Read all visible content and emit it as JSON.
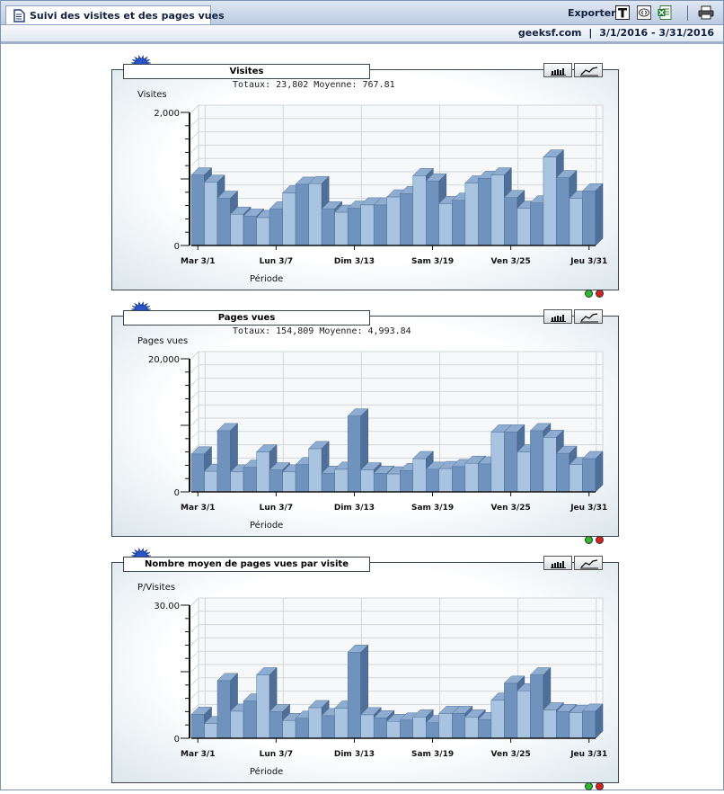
{
  "header": {
    "title": "Suivi des visites et des pages vues",
    "export_label": "Exporter",
    "site": "geeksf.com",
    "separator": "|",
    "date_range": "3/1/2016 - 3/31/2016"
  },
  "charts": [
    {
      "title": "Visites",
      "totals": "Totaux: 23,802  Moyenne: 767.81",
      "ylabel": "Visites",
      "xlabel": "Période"
    },
    {
      "title": "Pages vues",
      "totals": "Totaux: 154,809  Moyenne: 4,993.84",
      "ylabel": "Pages vues",
      "xlabel": "Période"
    },
    {
      "title": "Nombre moyen de pages vues par visite",
      "totals": "",
      "ylabel": "P/Visites",
      "xlabel": "Période"
    }
  ],
  "chart_data": [
    {
      "type": "bar",
      "title": "Visites",
      "ylabel": "Visites",
      "xlabel": "Période",
      "ylim": [
        0,
        2000
      ],
      "yticks": [
        "0",
        "2,000"
      ],
      "xtick_labels": [
        "Mar 3/1",
        "Lun 3/7",
        "Dim 3/13",
        "Sam 3/19",
        "Ven 3/25",
        "Jeu 3/31"
      ],
      "xtick_index": [
        0,
        6,
        12,
        18,
        24,
        30
      ],
      "values": [
        1060,
        950,
        710,
        470,
        440,
        420,
        550,
        790,
        920,
        930,
        550,
        500,
        560,
        610,
        610,
        730,
        780,
        1050,
        970,
        630,
        680,
        940,
        1010,
        1060,
        720,
        560,
        640,
        1330,
        1020,
        710,
        820
      ]
    },
    {
      "type": "bar",
      "title": "Pages vues",
      "ylabel": "Pages vues",
      "xlabel": "Période",
      "ylim": [
        0,
        20000
      ],
      "yticks": [
        "0",
        "20,000"
      ],
      "xtick_labels": [
        "Mar 3/1",
        "Lun 3/7",
        "Dim 3/13",
        "Sam 3/19",
        "Ven 3/25",
        "Jeu 3/31"
      ],
      "xtick_index": [
        0,
        6,
        12,
        18,
        24,
        30
      ],
      "values": [
        5700,
        3100,
        9200,
        3000,
        3700,
        6000,
        3300,
        3000,
        4100,
        6500,
        2800,
        3400,
        11400,
        3300,
        2800,
        2700,
        3200,
        5000,
        3400,
        3500,
        3800,
        4300,
        4200,
        9000,
        9000,
        6000,
        9200,
        8200,
        5800,
        4100,
        5000
      ]
    },
    {
      "type": "bar",
      "title": "Nombre moyen de pages vues par visite",
      "ylabel": "P/Visites",
      "xlabel": "Période",
      "ylim": [
        0,
        30
      ],
      "yticks": [
        "0",
        "30.00"
      ],
      "xtick_labels": [
        "Mar 3/1",
        "Lun 3/7",
        "Dim 3/13",
        "Sam 3/19",
        "Ven 3/25",
        "Jeu 3/31"
      ],
      "xtick_index": [
        0,
        6,
        12,
        18,
        24,
        30
      ],
      "values": [
        5.4,
        3.3,
        13.0,
        6.1,
        8.4,
        14.3,
        6.0,
        4.0,
        4.5,
        6.9,
        5.1,
        6.8,
        19.4,
        5.3,
        4.6,
        3.8,
        4.1,
        4.8,
        3.5,
        5.6,
        5.6,
        4.8,
        4.2,
        8.6,
        12.4,
        10.7,
        14.3,
        6.4,
        6.0,
        5.8,
        6.1
      ]
    }
  ],
  "colors": {
    "bar_light": "#a9c4e0",
    "bar_dark": "#6f93bd",
    "bar_side": "#4e6f98",
    "bar_top": "#8eacd0",
    "green_light": "#2bbb2b",
    "red_light": "#d92020"
  }
}
